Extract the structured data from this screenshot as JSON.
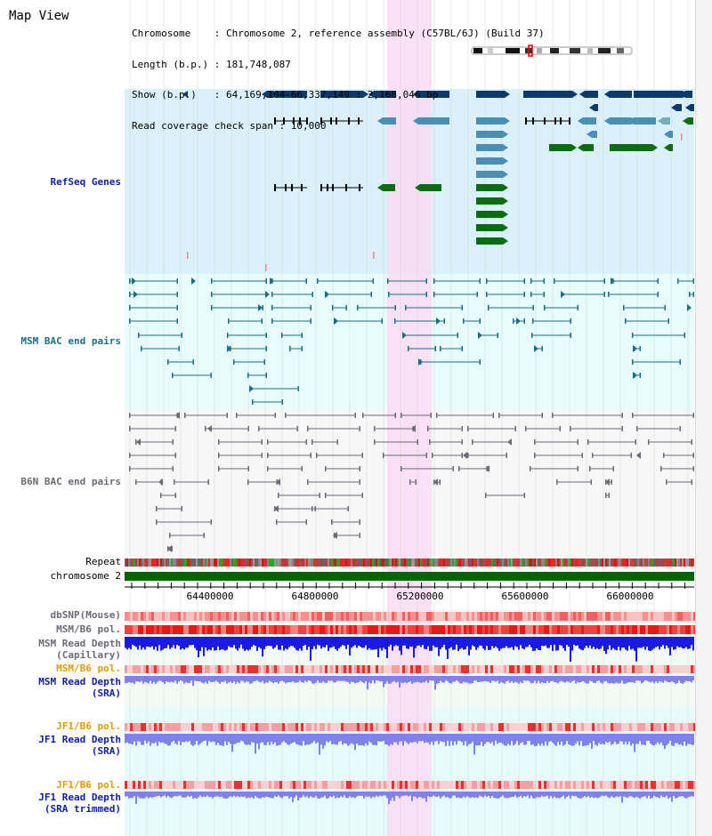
{
  "header": {
    "title": "Map View",
    "info_lines": [
      "Chromosome    : Chromosome 2, reference assembly (C57BL/6J) (Build 37)",
      "Length (b.p.) : 181,748,087",
      "Show (b.p.)   : 64,169,104-66,337,149 : 2,168,046 bp",
      "Read coverage check span : 10,000"
    ]
  },
  "tracks": {
    "refseq": "RefSeq Genes",
    "msm_bac": "MSM BAC end pairs",
    "b6n_bac": "B6N BAC end pairs",
    "repeat": "Repeat",
    "chromosome": "chromosome 2",
    "dbsnp": "dbSNP(Mouse)",
    "msm_pol": "MSM/B6 pol.",
    "msm_read_depth_cap_1": "MSM Read Depth",
    "msm_read_depth_cap_2": "(Capillary)",
    "msm_pol2": "MSM/B6 pol.",
    "msm_read_depth_sra_1": "MSM Read Depth",
    "msm_read_depth_sra_2": "(SRA)",
    "jf1_pol": "JF1/B6 pol.",
    "jf1_read_depth_sra_1": "JF1 Read Depth",
    "jf1_read_depth_sra_2": "(SRA)",
    "jf1_pol2": "JF1/B6 pol.",
    "jf1_read_depth_trim_1": "JF1 Read Depth",
    "jf1_read_depth_trim_2": "(SRA trimmed)"
  },
  "ruler": {
    "tick_labels": [
      "64400000",
      "64800000",
      "65200000",
      "65600000",
      "66000000"
    ]
  },
  "colors": {
    "refseq_bg": "#daf1fb",
    "bac_bg": "#e8fcfb",
    "b6n_bg": "#f7f7f7",
    "highlight": "#fadcf3",
    "gene_dark": "#0c3a6e",
    "gene_mid": "#4a8fb5",
    "gene_green": "#0a6e10",
    "chromosome_bar": "#006400",
    "read_depth_blue": "#1a1ae6",
    "read_depth_light": "#8080ee"
  }
}
